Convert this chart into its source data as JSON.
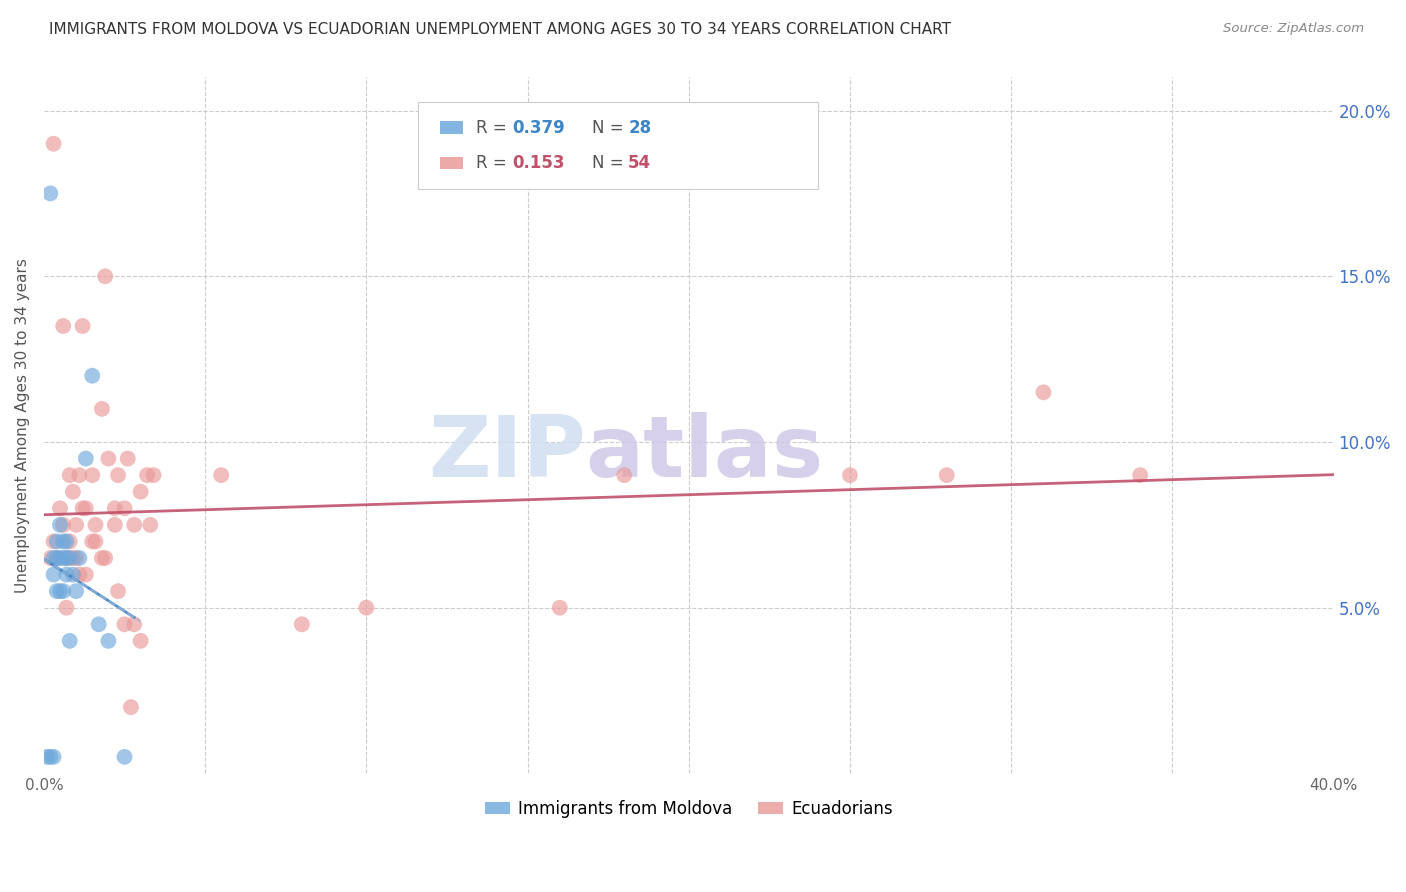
{
  "title": "IMMIGRANTS FROM MOLDOVA VS ECUADORIAN UNEMPLOYMENT AMONG AGES 30 TO 34 YEARS CORRELATION CHART",
  "source": "Source: ZipAtlas.com",
  "ylabel": "Unemployment Among Ages 30 to 34 years",
  "xlim": [
    0.0,
    0.4
  ],
  "ylim": [
    0.0,
    0.21
  ],
  "xticks": [
    0.0,
    0.05,
    0.1,
    0.15,
    0.2,
    0.25,
    0.3,
    0.35,
    0.4
  ],
  "xtick_labels": [
    "0.0%",
    "",
    "",
    "",
    "",
    "",
    "",
    "",
    "40.0%"
  ],
  "ytick_labels_right": [
    "5.0%",
    "10.0%",
    "15.0%",
    "20.0%"
  ],
  "yticks_right": [
    0.05,
    0.1,
    0.15,
    0.2
  ],
  "watermark_zip": "ZIP",
  "watermark_atlas": "atlas",
  "legend_label1": "Immigrants from Moldova",
  "legend_label2": "Ecuadorians",
  "color_blue": "#6fa8dc",
  "color_pink": "#ea9999",
  "color_trendline_blue": "#3d85c8",
  "color_trendline_pink": "#c0516a",
  "color_trendline_blue_dashed": "#a0b8d8",
  "background_color": "#ffffff",
  "title_fontsize": 11,
  "right_tick_color": "#4472c4",
  "moldova_x": [
    0.001,
    0.002,
    0.002,
    0.003,
    0.003,
    0.003,
    0.004,
    0.004,
    0.004,
    0.005,
    0.005,
    0.005,
    0.006,
    0.006,
    0.006,
    0.007,
    0.007,
    0.007,
    0.008,
    0.008,
    0.009,
    0.01,
    0.011,
    0.013,
    0.015,
    0.017,
    0.02,
    0.025
  ],
  "moldova_y": [
    0.005,
    0.175,
    0.005,
    0.005,
    0.06,
    0.065,
    0.065,
    0.055,
    0.07,
    0.075,
    0.065,
    0.055,
    0.07,
    0.065,
    0.055,
    0.07,
    0.065,
    0.06,
    0.065,
    0.04,
    0.06,
    0.055,
    0.065,
    0.095,
    0.12,
    0.045,
    0.04,
    0.005
  ],
  "ecuador_x": [
    0.002,
    0.003,
    0.005,
    0.006,
    0.007,
    0.008,
    0.009,
    0.01,
    0.011,
    0.012,
    0.013,
    0.015,
    0.016,
    0.018,
    0.019,
    0.02,
    0.022,
    0.023,
    0.025,
    0.026,
    0.028,
    0.03,
    0.032,
    0.034,
    0.25,
    0.28,
    0.31,
    0.003,
    0.006,
    0.008,
    0.01,
    0.012,
    0.015,
    0.018,
    0.022,
    0.025,
    0.028,
    0.03,
    0.033,
    0.055,
    0.08,
    0.1,
    0.004,
    0.007,
    0.009,
    0.011,
    0.013,
    0.016,
    0.019,
    0.023,
    0.027,
    0.18,
    0.34,
    0.16
  ],
  "ecuador_y": [
    0.065,
    0.07,
    0.08,
    0.075,
    0.065,
    0.09,
    0.085,
    0.075,
    0.09,
    0.135,
    0.08,
    0.09,
    0.075,
    0.11,
    0.15,
    0.095,
    0.08,
    0.09,
    0.08,
    0.095,
    0.075,
    0.085,
    0.09,
    0.09,
    0.09,
    0.09,
    0.115,
    0.19,
    0.135,
    0.07,
    0.065,
    0.08,
    0.07,
    0.065,
    0.075,
    0.045,
    0.045,
    0.04,
    0.075,
    0.09,
    0.045,
    0.05,
    0.065,
    0.05,
    0.065,
    0.06,
    0.06,
    0.07,
    0.065,
    0.055,
    0.02,
    0.09,
    0.09,
    0.05
  ]
}
